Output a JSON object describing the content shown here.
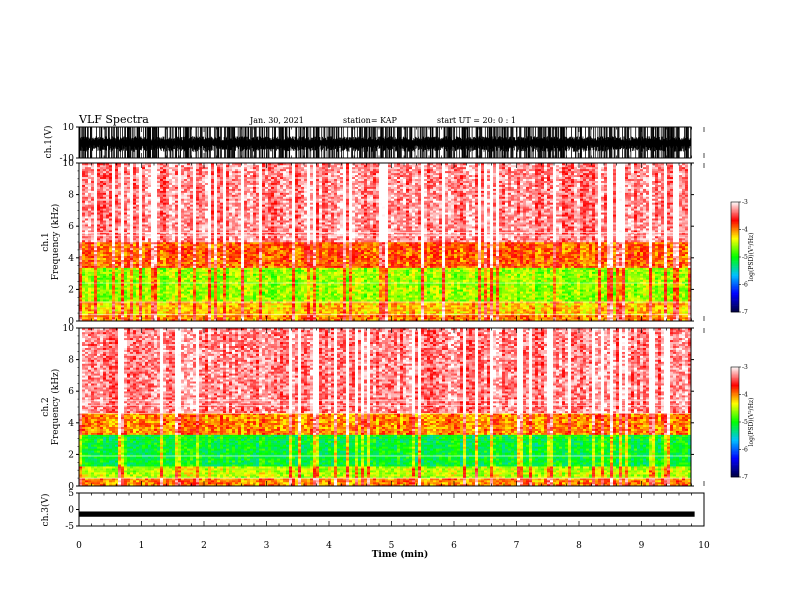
{
  "header": {
    "title": "VLF Spectra",
    "date": "Jan. 30, 2021",
    "station": "station= KAP",
    "start": "start  UT =   20: 0  : 1"
  },
  "colors": {
    "background": "#ffffff",
    "axes": "#000000",
    "spectrum_low": "#ff0000",
    "spectrum_mid": "#ffff00",
    "spectrum_high": "#00ff00"
  },
  "chart_data": [
    {
      "type": "line",
      "name": "ch1-waveform",
      "ylabel": "ch.1(V)",
      "ylim": [
        -10,
        10
      ],
      "y_ticks": [
        10,
        -10
      ],
      "xlim": [
        0,
        10
      ],
      "envelope": {
        "min": -10,
        "max": 10,
        "typical_min": -6,
        "typical_max": 4
      }
    },
    {
      "type": "heatmap",
      "name": "ch1-spectrogram",
      "ylabel": "ch.1\nFrequency (kHz)",
      "ylim": [
        0,
        10
      ],
      "y_ticks": [
        0,
        2,
        4,
        6,
        8,
        10
      ],
      "xlim": [
        0,
        9.85
      ],
      "colorbar": {
        "label": "log(PSD)(V²/Hz)",
        "range": [
          -7,
          -3
        ],
        "ticks": [
          -3,
          -4,
          -5,
          -6,
          -7
        ],
        "colors": [
          "#000040",
          "#0000ff",
          "#00c0ff",
          "#00ff00",
          "#ffff00",
          "#ff0000",
          "#ffffff"
        ]
      },
      "bands": [
        {
          "fmin": 0,
          "fmax": 0.3,
          "level": -4.0
        },
        {
          "fmin": 0.3,
          "fmax": 1.2,
          "level": -4.2
        },
        {
          "fmin": 1.2,
          "fmax": 3.3,
          "level": -4.6
        },
        {
          "fmin": 3.3,
          "fmax": 5.0,
          "level": -3.9
        },
        {
          "fmin": 5.0,
          "fmax": 10,
          "level": -3.3
        }
      ],
      "horizontal_lines_khz": [
        0.4,
        1.2,
        2.4,
        5.4,
        5.6
      ]
    },
    {
      "type": "heatmap",
      "name": "ch2-spectrogram",
      "ylabel": "ch.2\nFrequency (kHz)",
      "ylim": [
        0,
        10
      ],
      "y_ticks": [
        0,
        2,
        4,
        6,
        8,
        10
      ],
      "xlim": [
        0,
        9.85
      ],
      "colorbar": {
        "label": "log(PSD)(V²/Hz)",
        "range": [
          -7,
          -3
        ],
        "ticks": [
          -3,
          -4,
          -5,
          -6,
          -7
        ],
        "colors": [
          "#000040",
          "#0000ff",
          "#00c0ff",
          "#00ff00",
          "#ffff00",
          "#ff0000",
          "#ffffff"
        ]
      },
      "bands": [
        {
          "fmin": 0,
          "fmax": 0.5,
          "level": -4.0
        },
        {
          "fmin": 0.5,
          "fmax": 1.2,
          "level": -4.5
        },
        {
          "fmin": 1.2,
          "fmax": 3.2,
          "level": -5.1
        },
        {
          "fmin": 3.2,
          "fmax": 4.6,
          "level": -4.0
        },
        {
          "fmin": 4.6,
          "fmax": 10,
          "level": -3.3
        }
      ],
      "horizontal_lines_khz": [
        0.5,
        1.9,
        4.6,
        5.1,
        5.4
      ]
    },
    {
      "type": "line",
      "name": "ch3-waveform",
      "ylabel": "ch.3(V)",
      "ylim": [
        -5,
        5
      ],
      "y_ticks": [
        5,
        0,
        -5
      ],
      "xlim": [
        0,
        10
      ],
      "envelope": {
        "min": -2.2,
        "max": -0.6
      }
    }
  ],
  "time_axis": {
    "xlabel": "Time (min)",
    "ticks": [
      0,
      1,
      2,
      3,
      4,
      5,
      6,
      7,
      8,
      9,
      10
    ]
  }
}
